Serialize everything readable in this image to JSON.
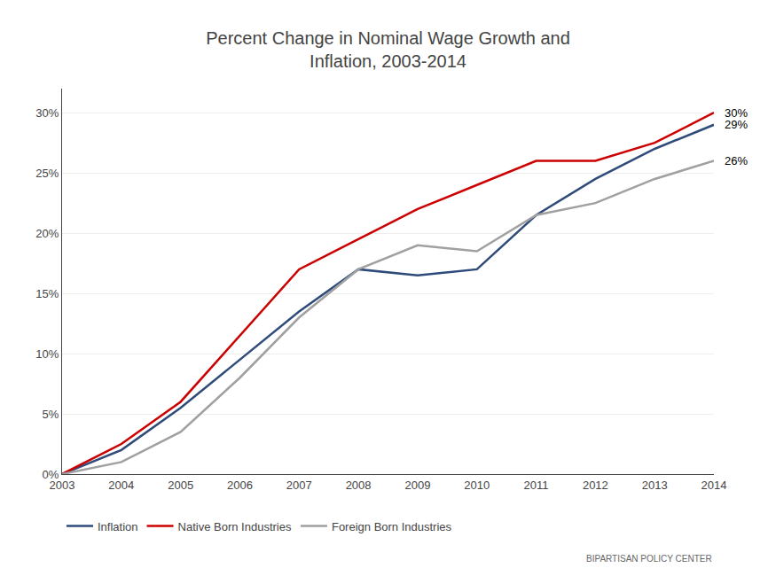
{
  "chart_data": {
    "type": "line",
    "title": "Percent Change in Nominal Wage Growth and\nInflation, 2003-2014",
    "x": [
      2003,
      2004,
      2005,
      2006,
      2007,
      2008,
      2009,
      2010,
      2011,
      2012,
      2013,
      2014
    ],
    "series": [
      {
        "name": "Inflation",
        "color": "#2E4B7A",
        "values": [
          0.0,
          2.0,
          5.5,
          9.5,
          13.5,
          17.0,
          16.5,
          17.0,
          21.5,
          24.5,
          27.0,
          29.0
        ]
      },
      {
        "name": "Native Born Industries",
        "color": "#CC0000",
        "values": [
          0.0,
          2.5,
          6.0,
          11.5,
          17.0,
          19.5,
          22.0,
          24.0,
          26.0,
          26.0,
          27.5,
          30.0
        ]
      },
      {
        "name": "Foreign Born Industries",
        "color": "#A0A0A0",
        "values": [
          0.0,
          1.0,
          3.5,
          8.0,
          13.0,
          17.0,
          19.0,
          18.5,
          21.5,
          22.5,
          24.5,
          26.0
        ]
      }
    ],
    "xlim": [
      2003,
      2014
    ],
    "xticks": [
      2003,
      2004,
      2005,
      2006,
      2007,
      2008,
      2009,
      2010,
      2011,
      2012,
      2013,
      2014
    ],
    "ylim": [
      0,
      32
    ],
    "yticks": [
      {
        "value": 0,
        "label": "0%"
      },
      {
        "value": 5,
        "label": "5%"
      },
      {
        "value": 10,
        "label": "10%"
      },
      {
        "value": 15,
        "label": "15%"
      },
      {
        "value": 20,
        "label": "20%"
      },
      {
        "value": 25,
        "label": "25%"
      },
      {
        "value": 30,
        "label": "30%"
      }
    ],
    "annotations": [
      {
        "text": "30%",
        "x": 2014,
        "y": 30.0
      },
      {
        "text": "29%",
        "x": 2014,
        "y": 29.0
      },
      {
        "text": "26%",
        "x": 2014,
        "y": 26.0
      },
      {
        "text": "BIPARTISAN POLICY CENTER"
      }
    ],
    "grid": "y",
    "legend": "bottom"
  }
}
